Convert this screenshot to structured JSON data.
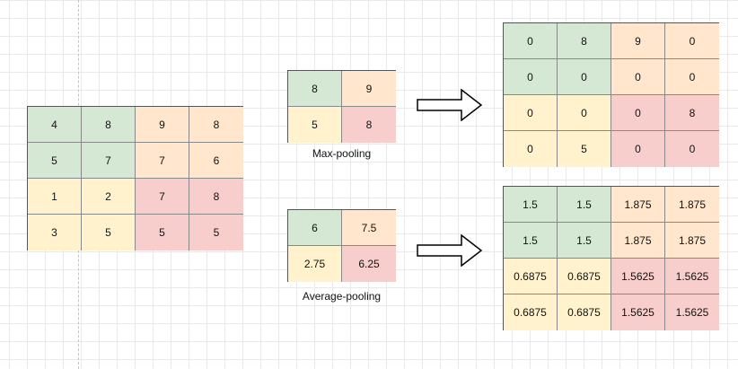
{
  "colors": {
    "green": "#d5e8d4",
    "orange": "#ffe6cc",
    "yellow": "#fff2cc",
    "red": "#f8cecc"
  },
  "input_grid": {
    "cells": [
      [
        "4",
        "8",
        "9",
        "8"
      ],
      [
        "5",
        "7",
        "7",
        "6"
      ],
      [
        "1",
        "2",
        "7",
        "8"
      ],
      [
        "3",
        "5",
        "5",
        "5"
      ]
    ]
  },
  "max_pool": {
    "cells": [
      [
        "8",
        "9"
      ],
      [
        "5",
        "8"
      ]
    ],
    "caption": "Max-pooling"
  },
  "avg_pool": {
    "cells": [
      [
        "6",
        "7.5"
      ],
      [
        "2.75",
        "6.25"
      ]
    ],
    "caption": "Average-pooling"
  },
  "max_unpool": {
    "cells": [
      [
        "0",
        "8",
        "9",
        "0"
      ],
      [
        "0",
        "0",
        "0",
        "0"
      ],
      [
        "0",
        "0",
        "0",
        "8"
      ],
      [
        "0",
        "5",
        "0",
        "0"
      ]
    ]
  },
  "avg_unpool": {
    "cells": [
      [
        "1.5",
        "1.5",
        "1.875",
        "1.875"
      ],
      [
        "1.5",
        "1.5",
        "1.875",
        "1.875"
      ],
      [
        "0.6875",
        "0.6875",
        "1.5625",
        "1.5625"
      ],
      [
        "0.6875",
        "0.6875",
        "1.5625",
        "1.5625"
      ]
    ]
  }
}
